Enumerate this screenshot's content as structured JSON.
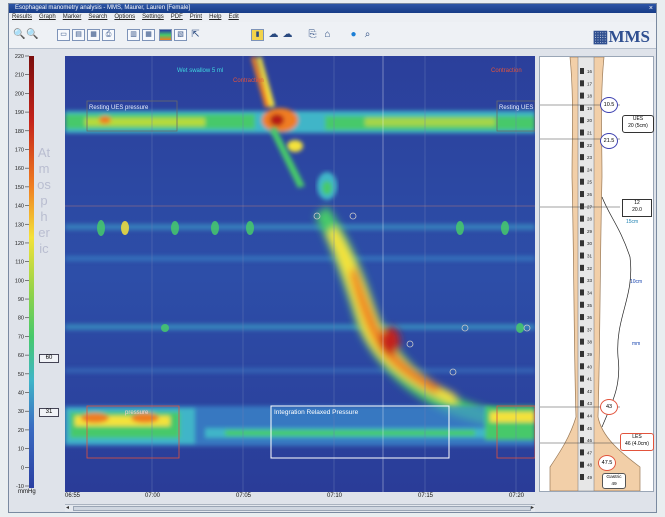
{
  "window": {
    "title": "Esophageal manometry analysis - MMS, Maurer, Lauren [Female]",
    "close_glyph": "×"
  },
  "menu": [
    "Results",
    "Graph",
    "Marker",
    "Search",
    "Options",
    "Settings",
    "PDF",
    "Print",
    "Help",
    "Edit"
  ],
  "toolbar": {
    "icons": [
      "zoom-in-icon",
      "zoom-out-icon",
      "image-icon",
      "table-icon",
      "photo-icon",
      "print-icon",
      "bar-chart-icon",
      "grid-icon",
      "colorscale-icon",
      "layout-icon",
      "pointer-icon",
      "bookmark-icon",
      "comment-icon",
      "speech-icon",
      "export-icon",
      "save-icon",
      "info-icon",
      "search-icon"
    ],
    "logo": "MMS"
  },
  "pressure_scale": {
    "ticks": [
      "220",
      "210",
      "200",
      "190",
      "180",
      "170",
      "160",
      "150",
      "140",
      "130",
      "120",
      "110",
      "100",
      "90",
      "80",
      "70",
      "60",
      "50",
      "40",
      "30",
      "20",
      "10",
      "0",
      "-10"
    ],
    "unit": "mmHg",
    "vertical_label": "Atmospheric",
    "marker_a": "60",
    "marker_b": "31"
  },
  "time_axis": {
    "ticks": [
      "06:55",
      "07:00",
      "07:05",
      "07:10",
      "07:15",
      "07:20"
    ]
  },
  "annotations": {
    "wet_swallow": "Wet swallow 5 ml",
    "contraction_top": "Contraction",
    "contraction_right": "Contraction",
    "resting_ues_left": "Resting UES pressure",
    "resting_ues_right": "Resting UES",
    "lower_pressure": "pressure",
    "irp_label": "Integration Relaxed Pressure"
  },
  "right_panel": {
    "ues_top": "10.5",
    "ues_label": "UES\n20 (5cm)",
    "ues_bottom": "21.5",
    "box_mid": "12\n20.0",
    "label_15cm": "15cm",
    "label_10cm": "10cm",
    "label_mm": "mm",
    "les_top": "43",
    "les_label": "LES\n46 (4.0cm)",
    "les_bottom": "47.5",
    "gastric": "Gastric\n49",
    "sensor_ticks": [
      "16",
      "17",
      "18",
      "19",
      "20",
      "21",
      "22",
      "23",
      "24",
      "25",
      "26",
      "27",
      "28",
      "29",
      "30",
      "31",
      "32",
      "33",
      "34",
      "35",
      "36",
      "37",
      "38",
      "39",
      "40",
      "41",
      "42",
      "43",
      "44",
      "45",
      "46",
      "47",
      "48",
      "49"
    ]
  },
  "colors": {
    "low": "#2a3fa2",
    "mid": "#3fb5c8",
    "green": "#46c96b",
    "yellow": "#f4e23a",
    "orange": "#ef7d21",
    "high": "#b51d16",
    "accent_orange": "#e2533c"
  }
}
